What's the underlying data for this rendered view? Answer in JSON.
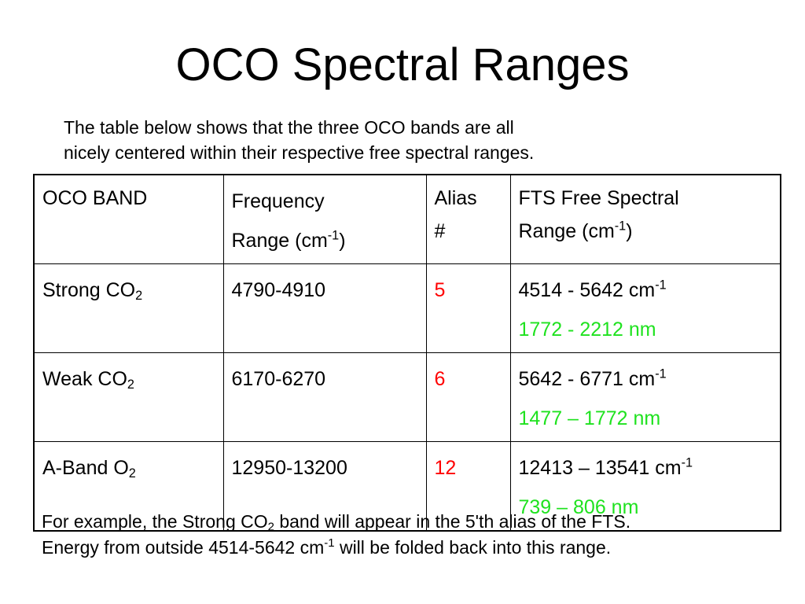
{
  "title": "OCO Spectral Ranges",
  "intro": {
    "line1": "The table below shows that the three OCO bands are all",
    "line2": "nicely centered within their respective free spectral ranges."
  },
  "colors": {
    "alias": "#ff0000",
    "nm_range": "#1fe21f"
  },
  "table": {
    "headers": {
      "band": "OCO BAND",
      "freq_line1": "Frequency",
      "freq_line2": "Range (cm",
      "freq_sup": "-1",
      "freq_close": ")",
      "alias_line1": "Alias",
      "alias_line2": "#",
      "fts_line1": "FTS Free Spectral",
      "fts_line2": "Range (cm",
      "fts_sup": "-1",
      "fts_close": ")"
    },
    "rows": [
      {
        "band_name": "Strong CO",
        "band_sub": "2",
        "frequency": "4790-4910",
        "alias": "5",
        "fts_cm": "4514 - 5642 cm",
        "fts_sup": "-1",
        "fts_nm": "1772  - 2212 nm"
      },
      {
        "band_name": "Weak CO",
        "band_sub": "2",
        "frequency": "6170-6270",
        "alias": "6",
        "fts_cm": "5642 - 6771 cm",
        "fts_sup": "-1",
        "fts_nm": "1477 – 1772 nm"
      },
      {
        "band_name": "A-Band O",
        "band_sub": "2",
        "frequency": "12950-13200",
        "alias": "12",
        "fts_cm": "12413 – 13541 cm",
        "fts_sup": "-1",
        "fts_nm": "739 – 806 nm"
      }
    ]
  },
  "footer": {
    "l1_a": "For example, the Strong CO",
    "l1_sub": "2",
    "l1_b": " band will appear in the 5'th alias of the FTS.",
    "l2_a": "Energy from outside 4514-5642 cm",
    "l2_sup": "-1",
    "l2_b": " will be folded back into this range."
  }
}
